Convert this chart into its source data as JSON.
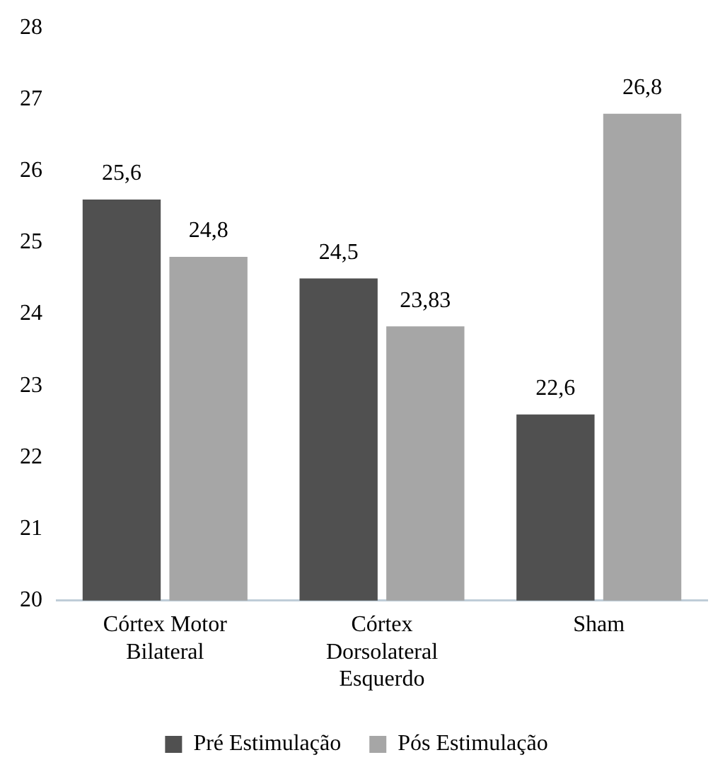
{
  "chart_data": {
    "type": "bar",
    "categories": [
      "Córtex Motor Bilateral",
      "Córtex Dorsolateral Esquerdo",
      "Sham"
    ],
    "series": [
      {
        "name": "Pré Estimulação",
        "color": "#505050",
        "values": [
          25.6,
          24.5,
          22.6
        ],
        "value_labels": [
          "25,6",
          "24,5",
          "22,6"
        ]
      },
      {
        "name": "Pós Estimulação",
        "color": "#a6a6a6",
        "values": [
          24.8,
          23.83,
          26.8
        ],
        "value_labels": [
          "24,8",
          "23,83",
          "26,8"
        ]
      }
    ],
    "ylim": [
      20,
      28
    ],
    "yticks": [
      20,
      21,
      22,
      23,
      24,
      25,
      26,
      27,
      28
    ],
    "grid": false,
    "legend": "bottom"
  }
}
